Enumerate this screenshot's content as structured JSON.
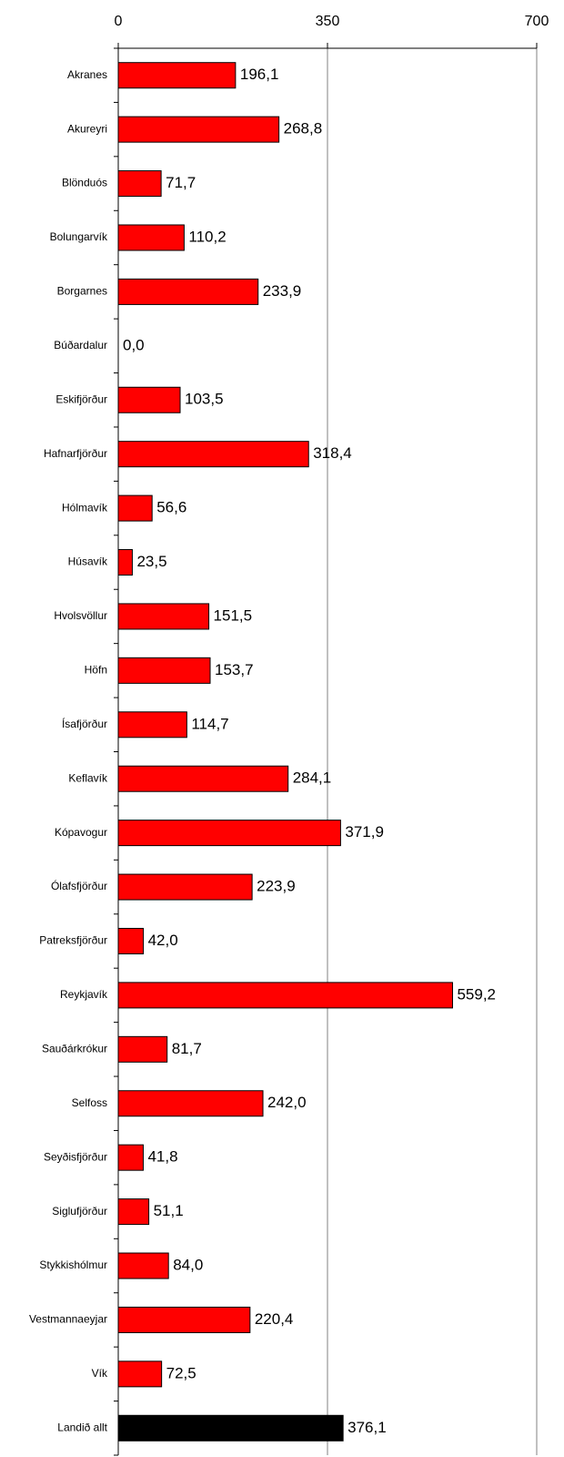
{
  "chart_data": {
    "type": "hbar",
    "categories": [
      "Akranes",
      "Akureyri",
      "Blönduós",
      "Bolungarvík",
      "Borgarnes",
      "Búðardalur",
      "Eskifjörður",
      "Hafnarfjörður",
      "Hólmavík",
      "Húsavík",
      "Hvolsvöllur",
      "Höfn",
      "Ísafjörður",
      "Keflavík",
      "Kópavogur",
      "Ólafsfjörður",
      "Patreksfjörður",
      "Reykjavík",
      "Sauðárkrókur",
      "Selfoss",
      "Seyðisfjörður",
      "Siglufjörður",
      "Stykkishólmur",
      "Vestmannaeyjar",
      "Vík",
      "Landið allt"
    ],
    "values": [
      196.1,
      268.8,
      71.7,
      110.2,
      233.9,
      0.0,
      103.5,
      318.4,
      56.6,
      23.5,
      151.5,
      153.7,
      114.7,
      284.1,
      371.9,
      223.9,
      42.0,
      559.2,
      81.7,
      242.0,
      41.8,
      51.1,
      84.0,
      220.4,
      72.5,
      376.1
    ],
    "value_labels": [
      "196,1",
      "268,8",
      "71,7",
      "110,2",
      "233,9",
      "0,0",
      "103,5",
      "318,4",
      "56,6",
      "23,5",
      "151,5",
      "153,7",
      "114,7",
      "284,1",
      "371,9",
      "223,9",
      "42,0",
      "559,2",
      "81,7",
      "242,0",
      "41,8",
      "51,1",
      "84,0",
      "220,4",
      "72,5",
      "376,1"
    ],
    "colors": [
      "#ff0000",
      "#ff0000",
      "#ff0000",
      "#ff0000",
      "#ff0000",
      "#ff0000",
      "#ff0000",
      "#ff0000",
      "#ff0000",
      "#ff0000",
      "#ff0000",
      "#ff0000",
      "#ff0000",
      "#ff0000",
      "#ff0000",
      "#ff0000",
      "#ff0000",
      "#ff0000",
      "#ff0000",
      "#ff0000",
      "#ff0000",
      "#ff0000",
      "#ff0000",
      "#ff0000",
      "#ff0000",
      "#000000"
    ],
    "xlim": [
      0,
      700
    ],
    "xticks": [
      0,
      350,
      700
    ],
    "grid": true
  }
}
